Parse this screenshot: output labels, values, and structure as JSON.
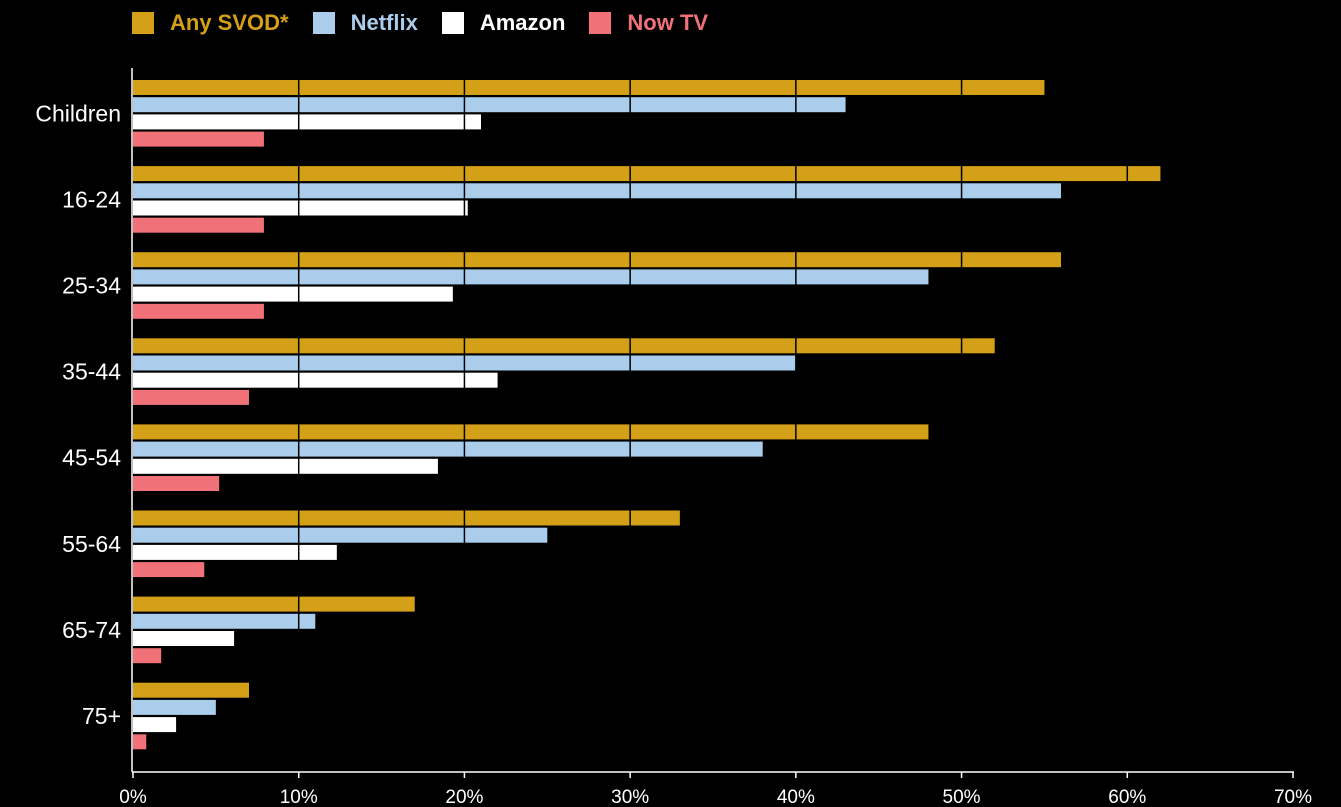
{
  "colors": {
    "background": "#000000",
    "axis": "#ffffff"
  },
  "chart_data": {
    "type": "bar",
    "orientation": "horizontal",
    "categories": [
      "Children",
      "16-24",
      "25-34",
      "35-44",
      "45-54",
      "55-64",
      "65-74",
      "75+"
    ],
    "series": [
      {
        "name": "Any SVOD*",
        "color": "#D4A017",
        "values": [
          55,
          62,
          56,
          52,
          48,
          33,
          17,
          7
        ]
      },
      {
        "name": "Netflix",
        "color": "#A9CDEB",
        "values": [
          43,
          56,
          48,
          40,
          38,
          25,
          11,
          5
        ]
      },
      {
        "name": "Amazon",
        "color": "#FFFFFF",
        "values": [
          21,
          20.2,
          19.3,
          22,
          18.4,
          12.3,
          6.1,
          2.6
        ]
      },
      {
        "name": "Now TV",
        "color": "#F07178",
        "values": [
          7.9,
          7.9,
          7.9,
          7,
          5.2,
          4.3,
          1.7,
          0.8
        ]
      }
    ],
    "xlim": [
      0,
      70
    ],
    "xticks": [
      0,
      10,
      20,
      30,
      40,
      50,
      60,
      70
    ],
    "xtick_labels": [
      "0%",
      "10%",
      "20%",
      "30%",
      "40%",
      "50%",
      "60%",
      "70%"
    ],
    "gridlines": "vertical, drawn over bars",
    "legend_position": "top-left"
  }
}
